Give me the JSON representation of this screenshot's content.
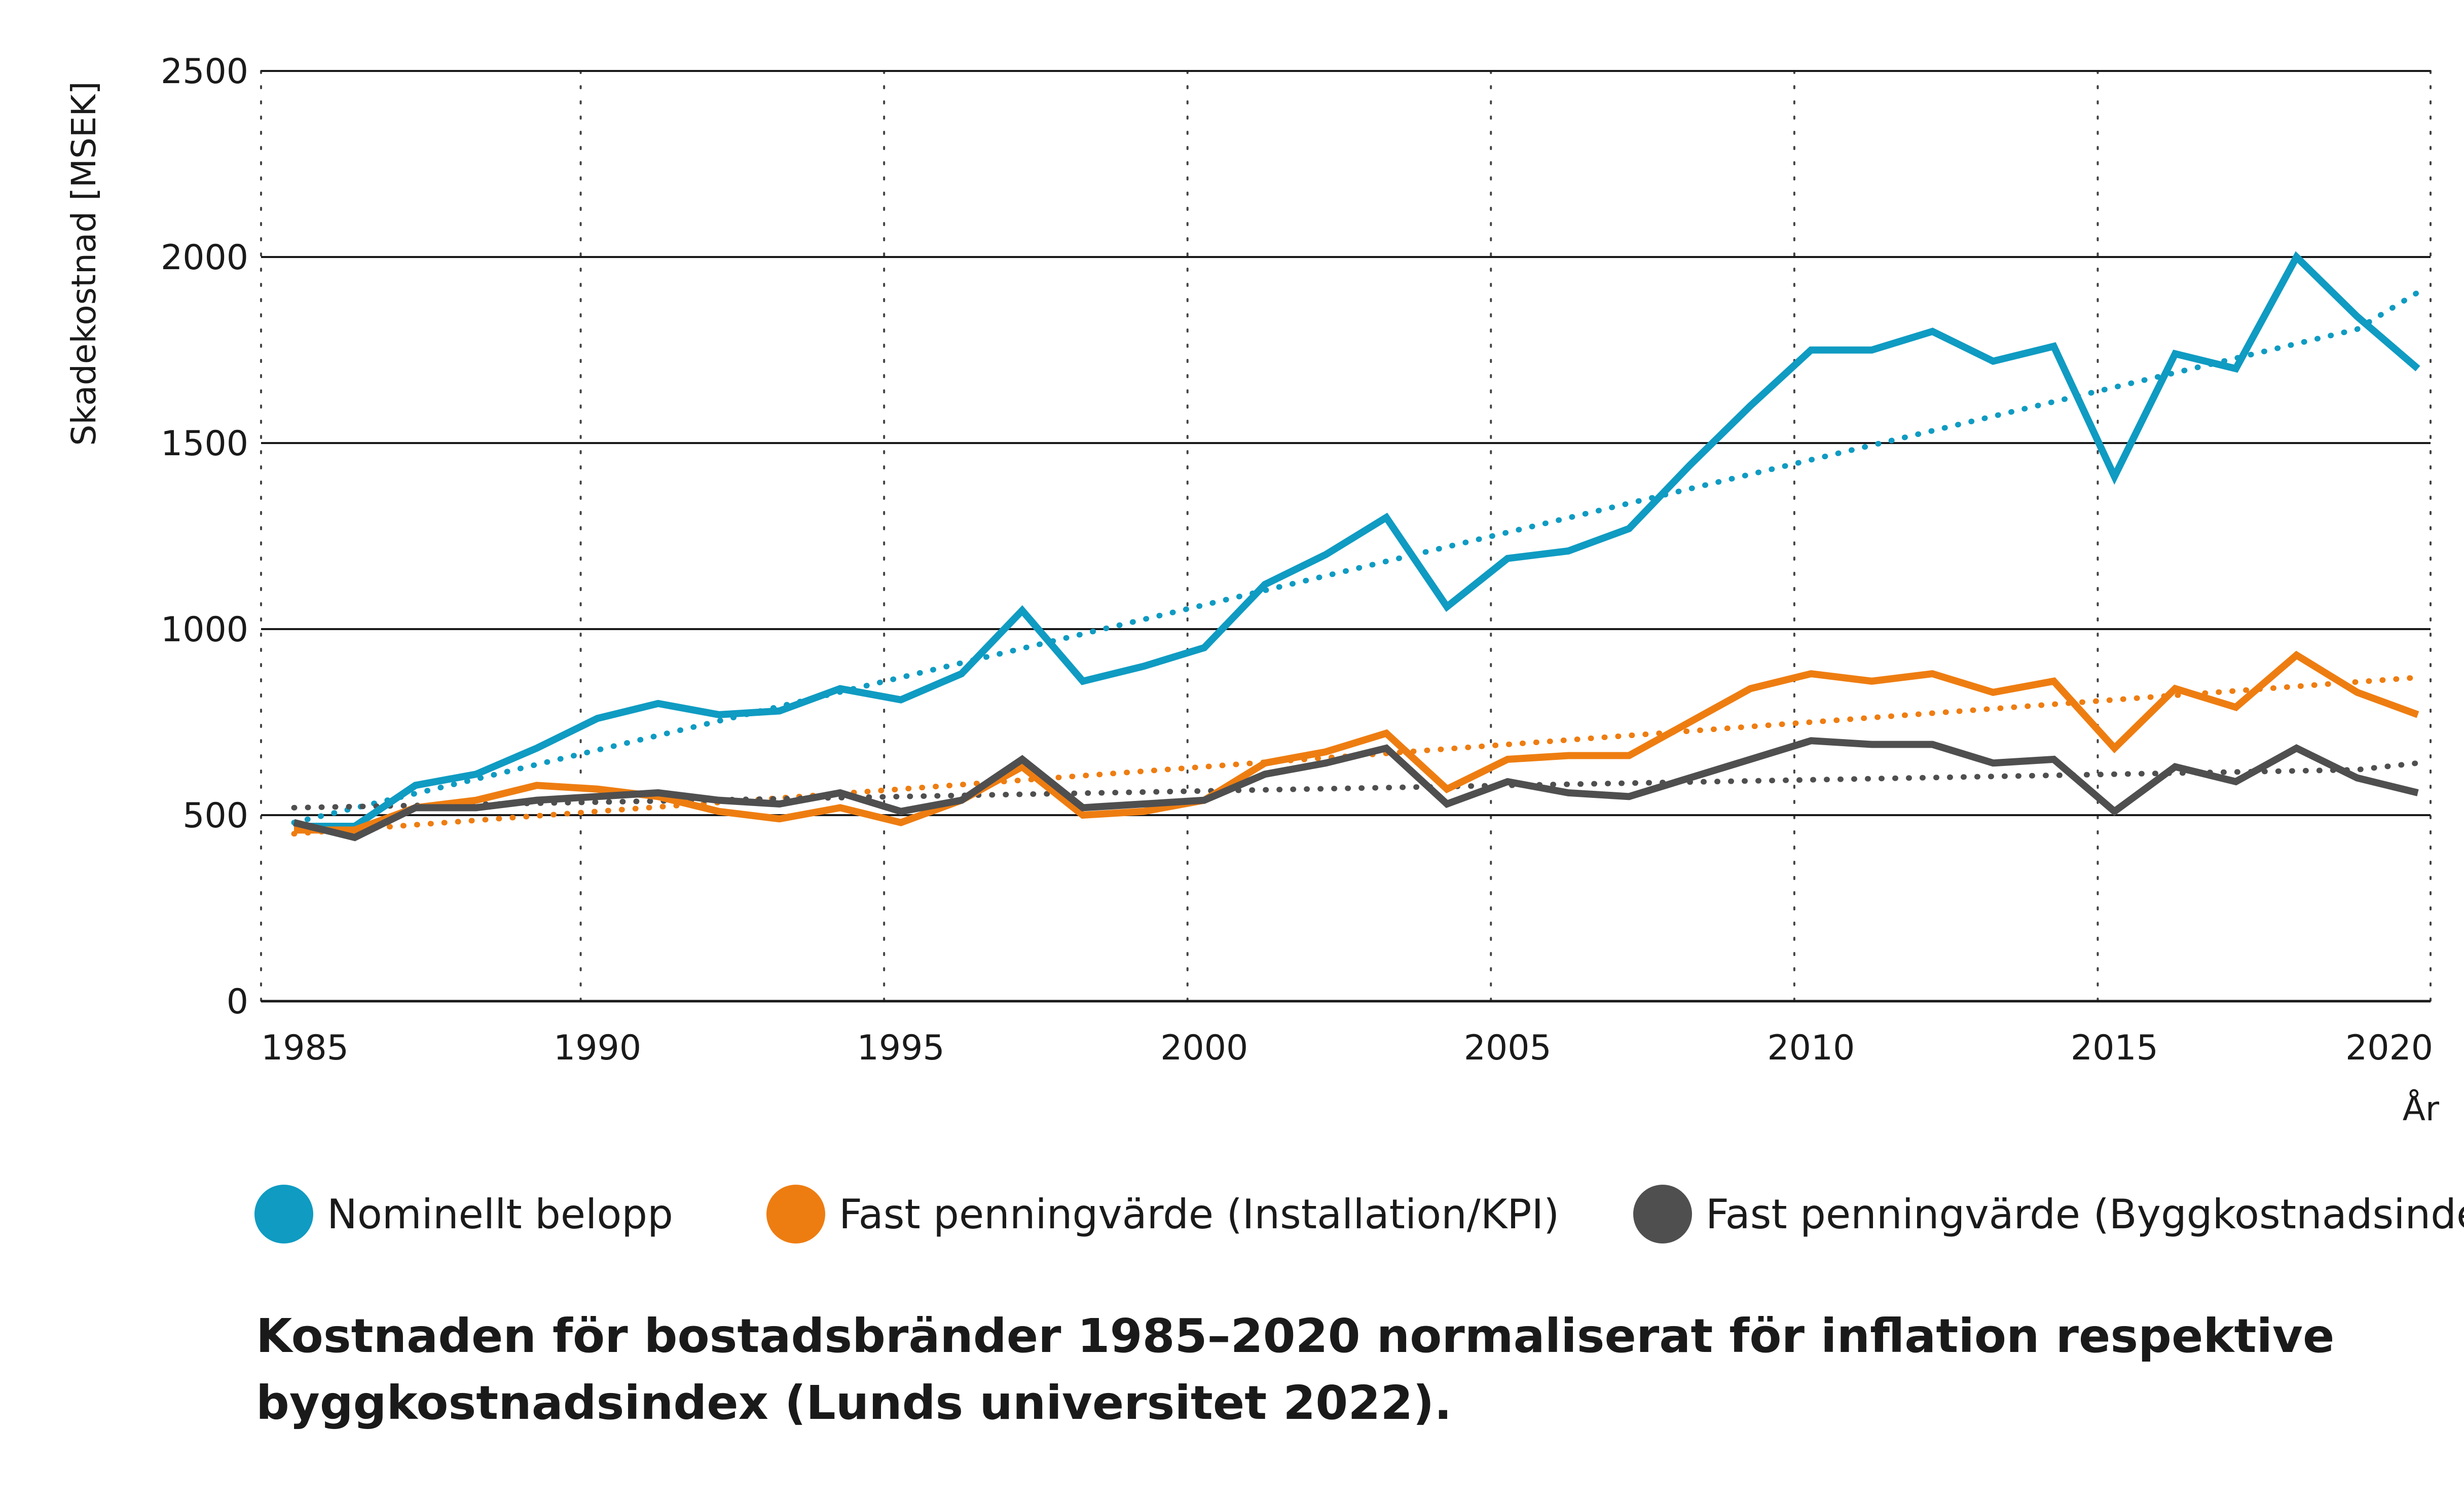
{
  "chart_data": {
    "type": "line",
    "title": "",
    "xlabel": "År",
    "ylabel": "Skadekostnad [MSEK]",
    "xlim": [
      1985,
      2020
    ],
    "ylim": [
      0,
      2500
    ],
    "x_ticks": [
      1985,
      1990,
      1995,
      2000,
      2005,
      2010,
      2015,
      2020
    ],
    "y_ticks": [
      0,
      500,
      1000,
      1500,
      2000,
      2500
    ],
    "grid": "horizontal solid, vertical dotted",
    "legend_position": "bottom",
    "x": [
      1985,
      1986,
      1987,
      1988,
      1989,
      1990,
      1991,
      1992,
      1993,
      1994,
      1995,
      1996,
      1997,
      1998,
      1999,
      2000,
      2001,
      2002,
      2003,
      2004,
      2005,
      2006,
      2007,
      2008,
      2009,
      2010,
      2011,
      2012,
      2013,
      2014,
      2015,
      2016,
      2017,
      2018,
      2019,
      2020
    ],
    "series": [
      {
        "name": "Nominellt belopp",
        "color": "#0f9bc2",
        "values": [
          470,
          470,
          580,
          610,
          680,
          760,
          800,
          770,
          780,
          840,
          810,
          880,
          1050,
          860,
          900,
          950,
          1120,
          1200,
          1300,
          1060,
          1190,
          1210,
          1270,
          1440,
          1600,
          1750,
          1750,
          1800,
          1720,
          1760,
          1410,
          1740,
          1700,
          2000,
          1840,
          1700
        ],
        "trend": [
          480,
          519,
          558,
          597,
          636,
          675,
          714,
          753,
          792,
          831,
          870,
          909,
          948,
          987,
          1026,
          1065,
          1104,
          1143,
          1182,
          1221,
          1260,
          1299,
          1338,
          1377,
          1416,
          1455,
          1494,
          1533,
          1572,
          1611,
          1650,
          1689,
          1728,
          1767,
          1806,
          1905
        ]
      },
      {
        "name": "Fast penningvärde (Installation/KPI)",
        "color": "#ee7d11",
        "values": [
          460,
          460,
          520,
          540,
          580,
          570,
          550,
          510,
          490,
          520,
          480,
          540,
          630,
          500,
          510,
          540,
          640,
          670,
          720,
          570,
          650,
          660,
          660,
          750,
          840,
          880,
          860,
          880,
          830,
          860,
          680,
          840,
          790,
          930,
          830,
          770
        ],
        "trend": [
          450,
          462,
          474,
          486,
          498,
          510,
          522,
          534,
          546,
          558,
          570,
          582,
          594,
          606,
          618,
          630,
          642,
          654,
          666,
          678,
          690,
          702,
          714,
          726,
          738,
          750,
          762,
          774,
          786,
          798,
          810,
          822,
          834,
          846,
          858,
          870
        ]
      },
      {
        "name": "Fast penningvärde (Byggkostnadsindex)",
        "color": "#4f4f4f",
        "values": [
          480,
          440,
          520,
          520,
          540,
          550,
          560,
          540,
          530,
          560,
          510,
          540,
          650,
          520,
          530,
          540,
          610,
          640,
          680,
          530,
          590,
          560,
          550,
          600,
          650,
          700,
          690,
          690,
          640,
          650,
          510,
          630,
          590,
          680,
          600,
          560
        ],
        "trend": [
          520,
          523,
          526,
          529,
          532,
          535,
          538,
          541,
          544,
          547,
          550,
          553,
          556,
          559,
          562,
          565,
          568,
          571,
          574,
          577,
          580,
          583,
          586,
          589,
          592,
          595,
          598,
          601,
          604,
          607,
          610,
          613,
          616,
          619,
          622,
          640
        ]
      }
    ]
  },
  "caption": "Kostnaden för bostadsbränder 1985–2020 normaliserat för inflation respektive byggkostnadsindex (Lunds universitet 2022)."
}
